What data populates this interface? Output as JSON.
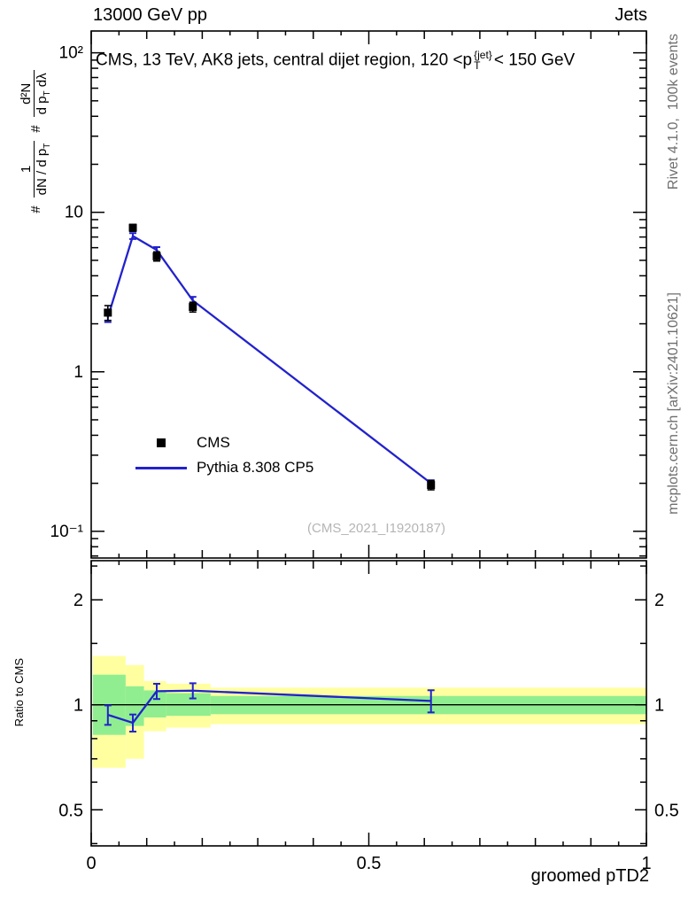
{
  "header": {
    "left": "13000 GeV pp",
    "right": "Jets"
  },
  "title": {
    "prefix": "CMS, 13 TeV, AK8 jets, central dijet region, 120 <p",
    "sup": "{jet}",
    "sub": "T",
    "suffix": "< 150 GeV"
  },
  "ylabel": {
    "hash1": "#",
    "f1_num": "1",
    "f1_den_pre": "dN / d p",
    "f1_den_sub": "T",
    "hash2": "#",
    "f2_num": "d²N",
    "f2_den_pre": "d p",
    "f2_den_sub": "T",
    "f2_den_post": " dλ"
  },
  "axes": {
    "x_label": "groomed pTD2",
    "ratio_label": "Ratio to CMS"
  },
  "legend": {
    "items": [
      {
        "label": "CMS",
        "marker": "square",
        "color": "#000000"
      },
      {
        "label": "Pythia 8.308 CP5",
        "marker": "line",
        "color": "#2222cc"
      }
    ]
  },
  "main_panel": {
    "watermark": "(CMS_2021_I1920187)"
  },
  "side_labels": {
    "rivet": "Rivet 4.1.0,  100k events",
    "mcplots": "mcplots.cern.ch [arXiv:2401.10621]"
  },
  "colors": {
    "line_blue": "#2222cc",
    "marker_black": "#000000",
    "band_yellow": "#ffffa0",
    "band_green": "#90ee90",
    "watermark_gray": "#b5b5b5",
    "credit_gray": "#6e6e6e"
  },
  "chart_data": {
    "type": "line",
    "title": "CMS, 13 TeV, AK8 jets, central dijet region, 120 < pT^{jet} < 150 GeV",
    "xlabel": "groomed pTD2",
    "ylabel": "# 1/(dN/dpT) # d²N/(dpT dλ)",
    "ratio_ylabel": "Ratio to CMS",
    "x_range": [
      0,
      1
    ],
    "main_y_scale": "log",
    "main_y_range": [
      0.068,
      137
    ],
    "ratio_y_scale": "log",
    "ratio_y_range": [
      0.394,
      2.59
    ],
    "x_ticks": [
      {
        "v": 0,
        "label": "0"
      },
      {
        "v": 0.5,
        "label": "0.5"
      },
      {
        "v": 1,
        "label": "1"
      }
    ],
    "x_minor_step": 0.05,
    "main_y_ticks": [
      {
        "v": 100,
        "label": "10²"
      },
      {
        "v": 10,
        "label": "10"
      },
      {
        "v": 1,
        "label": "1"
      },
      {
        "v": 0.1,
        "label": "10⁻¹"
      }
    ],
    "ratio_y_ticks": [
      {
        "v": 2,
        "label": "2"
      },
      {
        "v": 1,
        "label": "1"
      },
      {
        "v": 0.5,
        "label": "0.5"
      }
    ],
    "ratio_y_minor_ticks": [
      0.4,
      0.6,
      0.7,
      0.8,
      0.9,
      1.5,
      2.5
    ],
    "x": [
      0.03,
      0.075,
      0.118,
      0.183,
      0.612
    ],
    "series": [
      {
        "name": "CMS",
        "type": "marker-square",
        "color": "#000000",
        "y": [
          2.35,
          8.0,
          5.3,
          2.55,
          0.195
        ],
        "yerr": [
          0.25,
          0.4,
          0.35,
          0.18,
          0.013
        ]
      },
      {
        "name": "Pythia 8.308 CP5",
        "type": "line",
        "color": "#2222cc",
        "y": [
          2.2,
          7.1,
          5.8,
          2.8,
          0.2
        ],
        "yerr": [
          0.15,
          0.3,
          0.25,
          0.15,
          0.009
        ]
      }
    ],
    "ratio": {
      "reference": 1,
      "y": [
        0.936,
        0.888,
        1.094,
        1.098,
        1.026
      ],
      "yerr": [
        0.06,
        0.05,
        0.055,
        0.055,
        0.075
      ],
      "bands": [
        {
          "x0": 0.003,
          "x1": 0.062,
          "yellow": [
            0.66,
            1.38
          ],
          "green": [
            0.82,
            1.22
          ]
        },
        {
          "x0": 0.062,
          "x1": 0.095,
          "yellow": [
            0.7,
            1.3
          ],
          "green": [
            0.87,
            1.13
          ]
        },
        {
          "x0": 0.095,
          "x1": 0.135,
          "yellow": [
            0.84,
            1.17
          ],
          "green": [
            0.92,
            1.1
          ]
        },
        {
          "x0": 0.135,
          "x1": 0.215,
          "yellow": [
            0.86,
            1.15
          ],
          "green": [
            0.93,
            1.08
          ]
        },
        {
          "x0": 0.215,
          "x1": 1.0,
          "yellow": [
            0.88,
            1.12
          ],
          "green": [
            0.94,
            1.06
          ]
        }
      ]
    }
  }
}
